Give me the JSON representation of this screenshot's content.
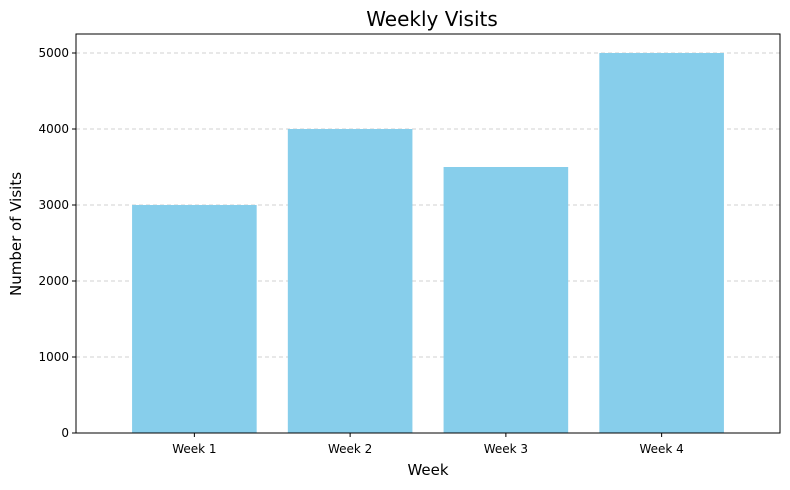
{
  "chart_data": {
    "type": "bar",
    "title": "Weekly Visits",
    "xlabel": "Week",
    "ylabel": "Number of Visits",
    "categories": [
      "Week 1",
      "Week 2",
      "Week 3",
      "Week 4"
    ],
    "values": [
      3000,
      4000,
      3500,
      5000
    ],
    "ylim": [
      0,
      5250
    ],
    "yticks": [
      0,
      1000,
      2000,
      3000,
      4000,
      5000
    ],
    "ytick_labels": [
      "0",
      "1000",
      "2000",
      "3000",
      "4000",
      "5000"
    ],
    "grid": {
      "axis": "y",
      "style": "dashed"
    },
    "colors": {
      "bar": "#87CEEB",
      "grid": "#d0d0d0",
      "axis": "#000000"
    }
  }
}
